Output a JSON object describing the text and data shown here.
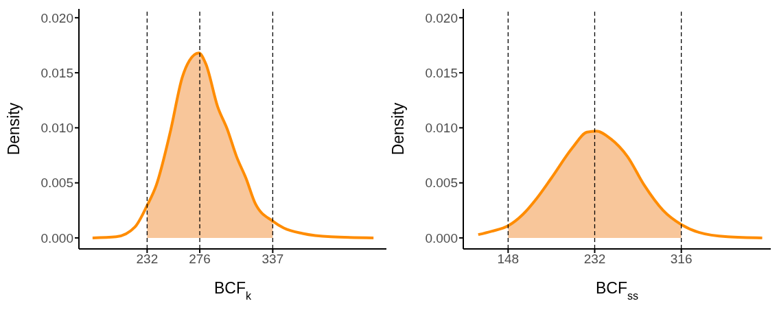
{
  "chart_data": [
    {
      "type": "line",
      "xlabel": "BCF$_{k}$",
      "ylabel": "Density",
      "xlim": [
        175,
        432
      ],
      "ylim": [
        -0.001,
        0.0208
      ],
      "xticks": [
        232,
        276,
        337
      ],
      "yticks": [
        {
          "value": 0,
          "label": "0.000"
        },
        {
          "value": 0.005,
          "label": "0.005"
        },
        {
          "value": 0.01,
          "label": "0.010"
        },
        {
          "value": 0.015,
          "label": "0.015"
        },
        {
          "value": 0.02,
          "label": "0.020"
        }
      ],
      "grid": false,
      "series": [
        {
          "type": "area",
          "color": "#f8c69a",
          "x": [
            232,
            239.7,
            251.5,
            261.4,
            267.3,
            275.2,
            281.1,
            291.0,
            298.9,
            306.7,
            314.7,
            322.5,
            337
          ],
          "values": [
            0.0029,
            0.0048,
            0.0097,
            0.0146,
            0.0161,
            0.0168,
            0.0158,
            0.0119,
            0.0099,
            0.0074,
            0.0054,
            0.0031,
            0.0015
          ]
        },
        {
          "type": "line",
          "color": "#ff8c00",
          "x": [
            186.4,
            206.1,
            221.9,
            231.8,
            239.7,
            251.5,
            261.4,
            267.3,
            275.2,
            281.1,
            291.0,
            298.9,
            306.7,
            314.7,
            322.5,
            337.3,
            346.2,
            362.0,
            385.7,
            421.2
          ],
          "values": [
            0,
            0.0001,
            0.001,
            0.0029,
            0.0048,
            0.0097,
            0.0146,
            0.0161,
            0.0168,
            0.0158,
            0.0119,
            0.0099,
            0.0074,
            0.0054,
            0.0031,
            0.0015,
            0.0009,
            0.0004,
            0.0001,
            0
          ]
        }
      ],
      "ref_lines": [
        {
          "axis": "x",
          "value": 232,
          "color": "#000000",
          "line_style": "dashed"
        },
        {
          "axis": "x",
          "value": 276,
          "color": "#000000",
          "line_style": "dashed"
        },
        {
          "axis": "x",
          "value": 337,
          "color": "#000000",
          "line_style": "dashed"
        }
      ]
    },
    {
      "type": "line",
      "xlabel": "BCF$_{ss}$",
      "ylabel": "Density",
      "xlim": [
        104.5,
        402.8
      ],
      "ylim": [
        -0.001,
        0.0208
      ],
      "xticks": [
        148,
        232,
        316
      ],
      "yticks": [
        {
          "value": 0,
          "label": "0.000"
        },
        {
          "value": 0.005,
          "label": "0.005"
        },
        {
          "value": 0.01,
          "label": "0.010"
        },
        {
          "value": 0.015,
          "label": "0.015"
        },
        {
          "value": 0.02,
          "label": "0.020"
        }
      ],
      "grid": false,
      "series": [
        {
          "type": "area",
          "color": "#f8c69a",
          "x": [
            148,
            161.9,
            175.8,
            189.7,
            210.5,
            224.4,
            233.6,
            247.5,
            263.7,
            280.0,
            298.4,
            316
          ],
          "values": [
            0.0011,
            0.0021,
            0.0036,
            0.0054,
            0.0082,
            0.0096,
            0.0097,
            0.009,
            0.0074,
            0.0048,
            0.0025,
            0.0012
          ]
        },
        {
          "type": "line",
          "color": "#ff8c00",
          "x": [
            119.0,
            131.8,
            148.0,
            161.9,
            175.8,
            189.7,
            210.5,
            224.4,
            233.6,
            247.5,
            263.7,
            280.0,
            298.4,
            316.3,
            333.1,
            361.0,
            394.5
          ],
          "values": [
            0.0003,
            0.0006,
            0.0011,
            0.0021,
            0.0036,
            0.0054,
            0.0082,
            0.0096,
            0.0097,
            0.009,
            0.0074,
            0.0048,
            0.0025,
            0.0012,
            0.0005,
            0.0001,
            0
          ]
        }
      ],
      "ref_lines": [
        {
          "axis": "x",
          "value": 148,
          "color": "#000000",
          "line_style": "dashed"
        },
        {
          "axis": "x",
          "value": 232,
          "color": "#000000",
          "line_style": "dashed"
        },
        {
          "axis": "x",
          "value": 316,
          "color": "#000000",
          "line_style": "dashed"
        }
      ]
    }
  ]
}
